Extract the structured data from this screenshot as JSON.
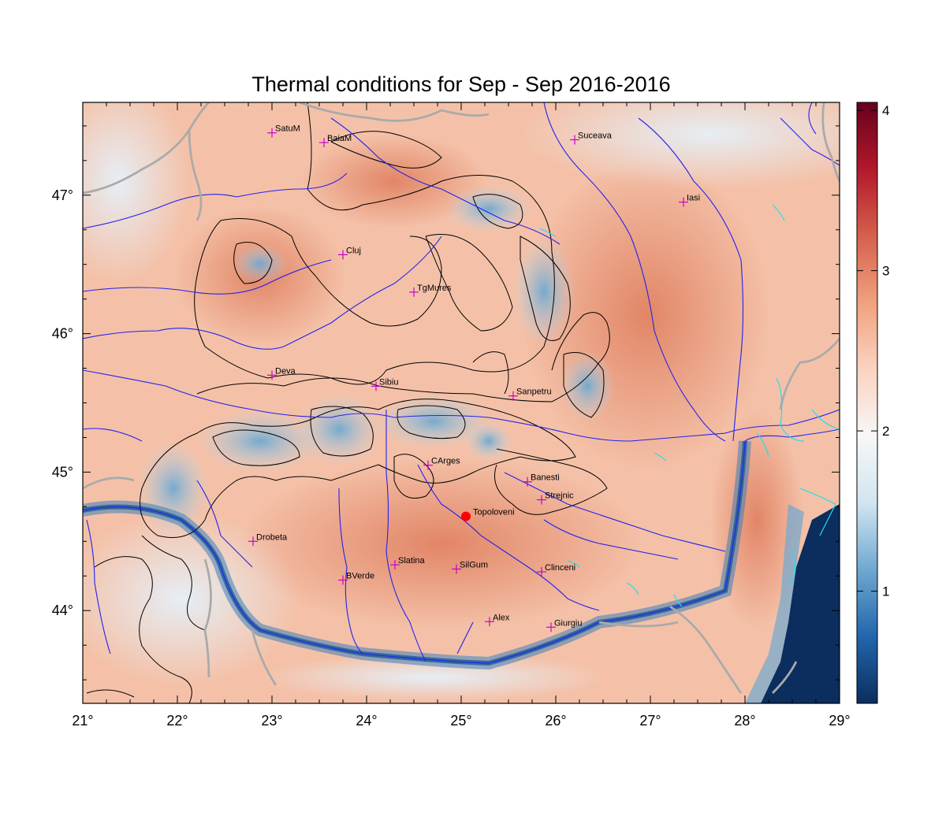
{
  "title": "Thermal conditions for Sep - Sep  2016-2016",
  "map": {
    "lon_range": [
      21,
      29
    ],
    "lat_range": [
      43.33,
      47.67
    ],
    "x_ticks": [
      "21°",
      "22°",
      "23°",
      "24°",
      "25°",
      "26°",
      "27°",
      "28°",
      "29°"
    ],
    "y_ticks": [
      "44°",
      "45°",
      "46°",
      "47°"
    ],
    "cities": [
      {
        "name": "SatuM",
        "lon": 23.0,
        "lat": 47.45
      },
      {
        "name": "BaiaM",
        "lon": 23.55,
        "lat": 47.38
      },
      {
        "name": "Suceava",
        "lon": 26.2,
        "lat": 47.4
      },
      {
        "name": "Iasi",
        "lon": 27.35,
        "lat": 46.95
      },
      {
        "name": "Cluj",
        "lon": 23.75,
        "lat": 46.57
      },
      {
        "name": "TgMures",
        "lon": 24.5,
        "lat": 46.3
      },
      {
        "name": "Deva",
        "lon": 23.0,
        "lat": 45.7
      },
      {
        "name": "Sibiu",
        "lon": 24.1,
        "lat": 45.62
      },
      {
        "name": "Sanpetru",
        "lon": 25.55,
        "lat": 45.55
      },
      {
        "name": "CArges",
        "lon": 24.65,
        "lat": 45.05
      },
      {
        "name": "Banesti",
        "lon": 25.7,
        "lat": 44.93
      },
      {
        "name": "Strejnic",
        "lon": 25.85,
        "lat": 44.8
      },
      {
        "name": "Drobeta",
        "lon": 22.8,
        "lat": 44.5
      },
      {
        "name": "Slatina",
        "lon": 24.3,
        "lat": 44.33
      },
      {
        "name": "SilGum",
        "lon": 24.95,
        "lat": 44.3
      },
      {
        "name": "Clinceni",
        "lon": 25.85,
        "lat": 44.28
      },
      {
        "name": "BVerde",
        "lon": 23.75,
        "lat": 44.22
      },
      {
        "name": "Alex",
        "lon": 25.3,
        "lat": 43.92
      },
      {
        "name": "Giurgiu",
        "lon": 25.95,
        "lat": 43.88
      }
    ],
    "highlight_station": {
      "name": "Topoloveni",
      "lon": 25.05,
      "lat": 44.68,
      "color": "#ff0000"
    }
  },
  "colorbar": {
    "min": 0.3,
    "max": 4.05,
    "ticks": [
      "1",
      "2",
      "3",
      "4"
    ],
    "tick_values": [
      1,
      2,
      3,
      4
    ],
    "colors": [
      "#0b2e5e",
      "#2166ac",
      "#6fa8d0",
      "#d1e5f0",
      "#f7f7f7",
      "#fbd3c0",
      "#f0a17f",
      "#d6604d",
      "#b2182b",
      "#67001f"
    ]
  },
  "colors": {
    "river": "#2222ee",
    "border": "#b0b0b0",
    "contour": "#000000",
    "sea": "#0b2e5e",
    "coast": "#22ddee",
    "city_marker": "#cc00cc"
  }
}
